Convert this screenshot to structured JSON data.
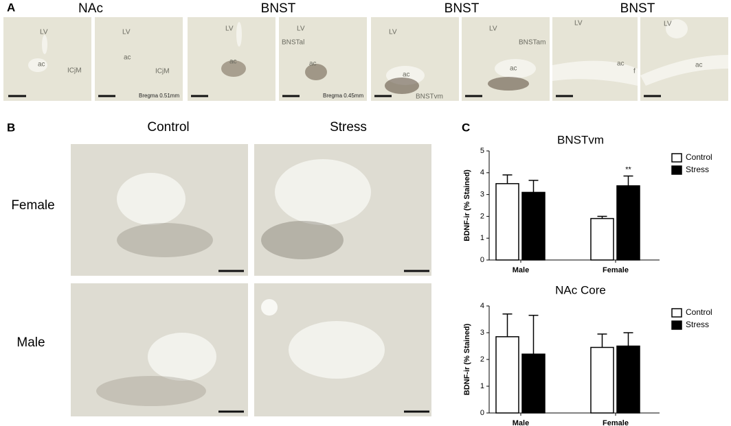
{
  "panel_a": {
    "label": "A",
    "headers": [
      "NAc",
      "BNST",
      "BNST",
      "BNST"
    ],
    "images": [
      {
        "labels": [
          "LV",
          "ac",
          "ICjM"
        ]
      },
      {
        "labels": [
          "LV",
          "ac",
          "ICjM",
          "Bregma 0.51mm"
        ]
      },
      {
        "labels": [
          "LV",
          "ac"
        ]
      },
      {
        "labels": [
          "LV",
          "BNSTal",
          "ac",
          "Bregma 0.45mm"
        ]
      },
      {
        "labels": [
          "LV",
          "ac",
          "BNSTvm"
        ]
      },
      {
        "labels": [
          "LV",
          "BNSTam",
          "ac"
        ]
      },
      {
        "labels": [
          "LV",
          "ac",
          "f"
        ]
      },
      {
        "labels": [
          "LV",
          "ac"
        ]
      }
    ]
  },
  "panel_b": {
    "label": "B",
    "columns": [
      "Control",
      "Stress"
    ],
    "rows": [
      "Female",
      "Male"
    ]
  },
  "panel_c": {
    "label": "C"
  },
  "chart_data": [
    {
      "type": "bar",
      "title": "BNSTvm",
      "y_label": "BDNF-ir (% Stained)",
      "categories": [
        "Male",
        "Female"
      ],
      "ylim": [
        0,
        5
      ],
      "yticks": [
        0,
        1,
        2,
        3,
        4,
        5
      ],
      "series": [
        {
          "name": "Control",
          "color": "#ffffff",
          "values": [
            3.5,
            1.9
          ],
          "errors": [
            0.4,
            0.1
          ]
        },
        {
          "name": "Stress",
          "color": "#000000",
          "values": [
            3.1,
            3.4
          ],
          "errors": [
            0.55,
            0.45
          ]
        }
      ],
      "annotation": "**"
    },
    {
      "type": "bar",
      "title": "NAc Core",
      "y_label": "BDNF-ir (% Stained)",
      "categories": [
        "Male",
        "Female"
      ],
      "ylim": [
        0,
        4
      ],
      "yticks": [
        0,
        1,
        2,
        3,
        4
      ],
      "series": [
        {
          "name": "Control",
          "color": "#ffffff",
          "values": [
            2.85,
            2.45
          ],
          "errors": [
            0.85,
            0.5
          ]
        },
        {
          "name": "Stress",
          "color": "#000000",
          "values": [
            2.2,
            2.5
          ],
          "errors": [
            1.45,
            0.5
          ]
        }
      ]
    }
  ]
}
